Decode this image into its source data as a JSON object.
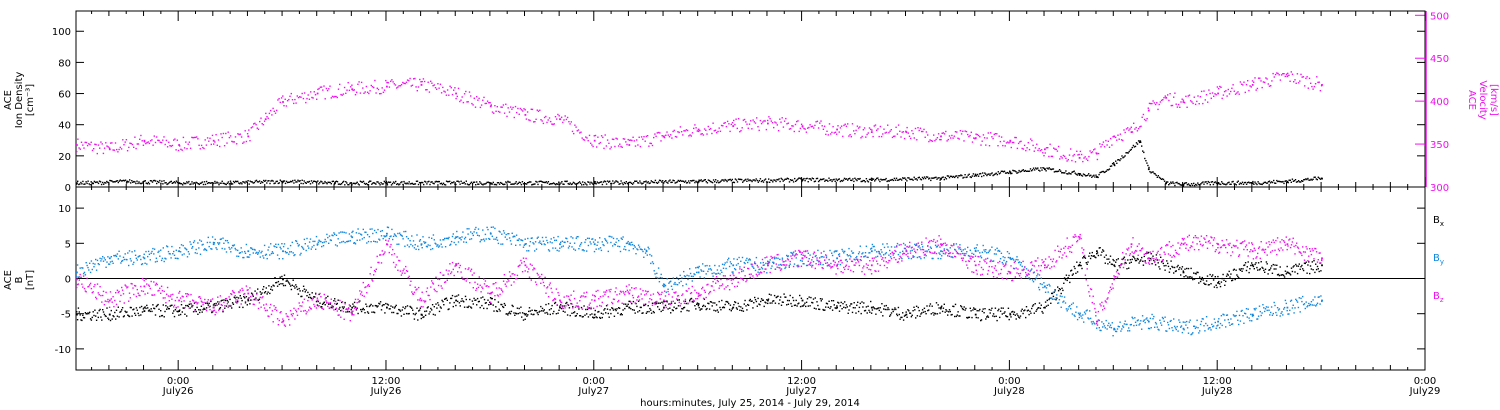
{
  "figure": {
    "footer": "hours:minutes, July 25, 2014 - July 29, 2014",
    "time_ticks": [
      {
        "time": "0:00",
        "date": "July26",
        "hour": 0
      },
      {
        "time": "12:00",
        "date": "July26",
        "hour": 12
      },
      {
        "time": "0:00",
        "date": "July27",
        "hour": 24
      },
      {
        "time": "12:00",
        "date": "July27",
        "hour": 36
      },
      {
        "time": "0:00",
        "date": "July28",
        "hour": 48
      },
      {
        "time": "12:00",
        "date": "July28",
        "hour": 60
      },
      {
        "time": "0:00",
        "date": "July29",
        "hour": 72
      }
    ]
  },
  "colors": {
    "density": "#000000",
    "velocity": "#ee11ee",
    "bx": "#000000",
    "by": "#1188dd",
    "bz": "#ee11ee"
  },
  "chart_data": [
    {
      "type": "scatter",
      "panel": "top",
      "ylabel_lines": [
        "ACE",
        "Ion Density",
        "[cm⁻³]"
      ],
      "ylim": [
        0,
        113
      ],
      "yticks": [
        0,
        20,
        40,
        60,
        80,
        100
      ],
      "y2label_lines": [
        "ACE",
        "Velocity",
        "[km/s]"
      ],
      "y2lim": [
        300,
        505
      ],
      "y2ticks": [
        300,
        350,
        400,
        450,
        500
      ],
      "xlim": [
        -5.9,
        72
      ],
      "x_unit": "hours since July 26, 2014 0:00",
      "series": [
        {
          "role": "density",
          "axis": "left",
          "x": [
            -5.9,
            -5,
            -3,
            0,
            3,
            6,
            9,
            12,
            18,
            24,
            30,
            36,
            40,
            44,
            46,
            48,
            50,
            52,
            53,
            54,
            55.5,
            56,
            57,
            58,
            60,
            62,
            64,
            66
          ],
          "values": [
            3,
            3,
            4,
            3,
            3,
            4,
            3,
            3,
            3,
            3,
            4,
            5,
            5,
            6,
            8,
            10,
            12,
            9,
            7,
            15,
            30,
            12,
            3,
            2,
            3,
            3,
            4,
            6
          ]
        },
        {
          "role": "velocity",
          "axis": "right",
          "x": [
            -5.9,
            -4,
            -2,
            0,
            2,
            4,
            5,
            6,
            8,
            10,
            12,
            14,
            16,
            18,
            20,
            22,
            24,
            26,
            28,
            30,
            32,
            34,
            36,
            38,
            40,
            42,
            44,
            46,
            48,
            50,
            52,
            53,
            54,
            55,
            56,
            57,
            58,
            60,
            62,
            64,
            66
          ],
          "values": [
            350,
            345,
            355,
            350,
            355,
            360,
            380,
            400,
            410,
            415,
            418,
            420,
            410,
            395,
            385,
            380,
            355,
            350,
            360,
            368,
            372,
            375,
            372,
            368,
            365,
            365,
            360,
            358,
            355,
            345,
            335,
            340,
            360,
            365,
            390,
            405,
            400,
            410,
            420,
            430,
            420
          ]
        }
      ]
    },
    {
      "type": "scatter",
      "panel": "bottom",
      "ylabel_lines": [
        "ACE",
        "B",
        "[nT]"
      ],
      "ylim": [
        -13,
        13
      ],
      "yticks": [
        -10,
        -5,
        0,
        5,
        10
      ],
      "xlim": [
        -5.9,
        72
      ],
      "x_unit": "hours since July 26, 2014 0:00",
      "zero_line": true,
      "series": [
        {
          "name": "Bx",
          "label_main": "B",
          "label_sub": "x",
          "x": [
            -5.9,
            -4,
            -2,
            0,
            2,
            4,
            6,
            8,
            10,
            12,
            14,
            16,
            18,
            20,
            22,
            24,
            26,
            28,
            30,
            32,
            34,
            36,
            38,
            40,
            42,
            44,
            46,
            48,
            50,
            52,
            53,
            54,
            56,
            58,
            60,
            62,
            64,
            66
          ],
          "values": [
            -5,
            -5,
            -4.5,
            -4.5,
            -4,
            -3,
            0,
            -3,
            -4,
            -4,
            -5,
            -3,
            -3.5,
            -5,
            -4,
            -5,
            -4,
            -4,
            -3.5,
            -4,
            -3,
            -3,
            -4,
            -4,
            -5,
            -4,
            -5,
            -5,
            -4,
            2,
            4,
            2,
            3,
            1,
            -0.5,
            2,
            1,
            2
          ]
        },
        {
          "name": "By",
          "label_main": "B",
          "label_sub": "y",
          "x": [
            -5.9,
            -4,
            -2,
            0,
            2,
            4,
            6,
            8,
            10,
            12,
            14,
            16,
            18,
            20,
            22,
            24,
            26,
            27,
            28,
            30,
            32,
            34,
            36,
            38,
            40,
            42,
            44,
            46,
            48,
            50,
            52,
            54,
            56,
            58,
            60,
            62,
            64,
            66
          ],
          "values": [
            1,
            3,
            3,
            4,
            5,
            4,
            4,
            5,
            6,
            6.5,
            5,
            6,
            6.5,
            5,
            5,
            5,
            5,
            4,
            -1,
            1,
            2,
            2,
            3,
            3,
            4,
            4,
            4,
            4,
            3,
            -1,
            -5,
            -7,
            -6,
            -7,
            -6,
            -5,
            -4,
            -3
          ]
        },
        {
          "name": "Bz",
          "label_main": "B",
          "label_sub": "z",
          "x": [
            -5.9,
            -4,
            -2,
            0,
            2,
            4,
            6,
            8,
            10,
            12,
            14,
            16,
            18,
            20,
            22,
            24,
            26,
            28,
            30,
            32,
            34,
            36,
            38,
            40,
            42,
            44,
            46,
            48,
            50,
            52,
            53,
            54,
            55,
            56,
            58,
            60,
            62,
            64,
            66
          ],
          "values": [
            0,
            -3,
            -1,
            -3,
            -4,
            -2,
            -6,
            -3,
            -5,
            5,
            -3,
            2,
            -2,
            2,
            -3,
            -3,
            -2,
            -3,
            -2,
            0,
            2,
            3,
            2,
            2,
            4,
            5,
            2,
            1,
            2,
            6,
            -6,
            0,
            5,
            3,
            5,
            5,
            4,
            5,
            3
          ]
        }
      ]
    }
  ]
}
